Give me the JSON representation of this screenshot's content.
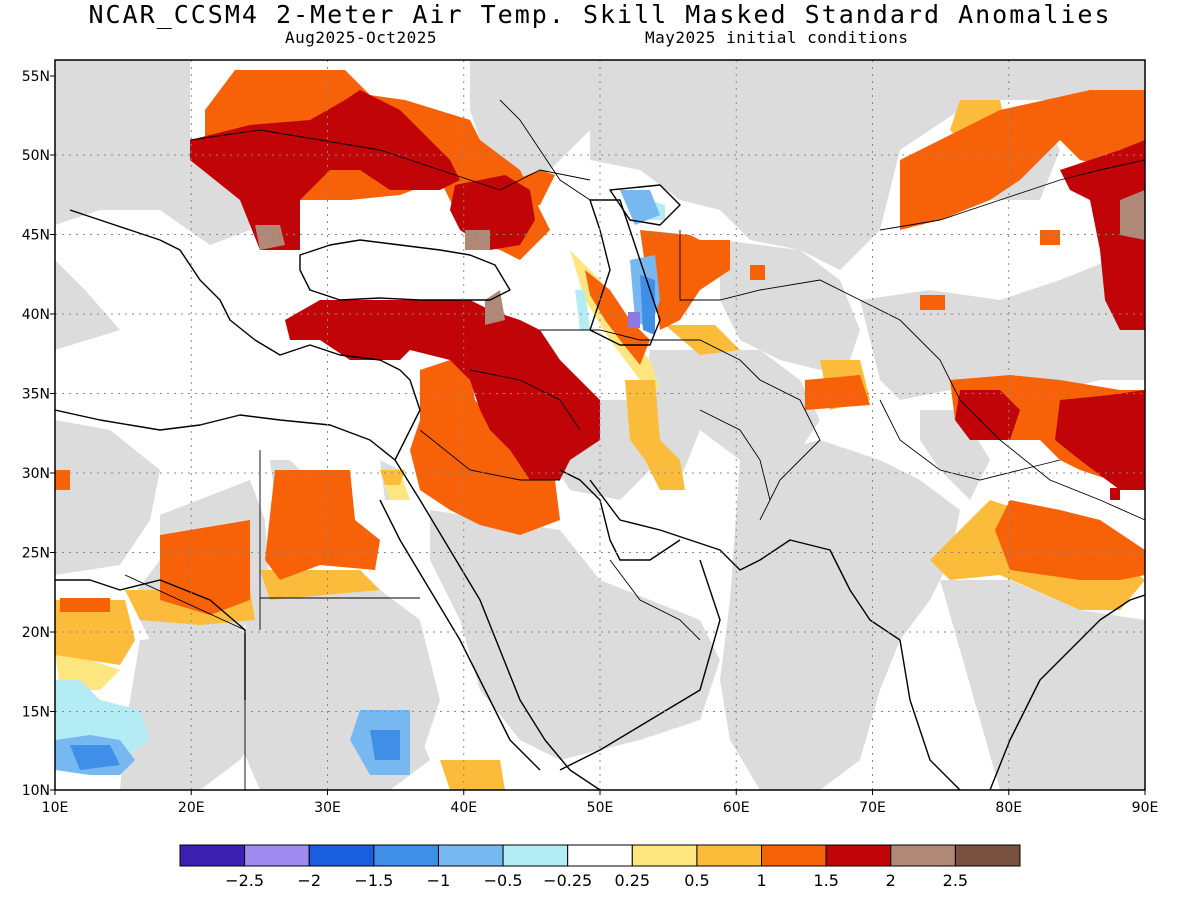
{
  "title": "NCAR_CCSM4 2-Meter Air Temp. Skill Masked Standard Anomalies",
  "period": "Aug2025-Oct2025",
  "init": "May2025 initial conditions",
  "lat_labels": [
    "55N",
    "50N",
    "45N",
    "40N",
    "35N",
    "30N",
    "25N",
    "20N",
    "15N",
    "10N"
  ],
  "lon_labels": [
    "10E",
    "20E",
    "30E",
    "40E",
    "50E",
    "60E",
    "70E",
    "80E",
    "90E"
  ],
  "colorbar": {
    "colors": [
      "#3a1fb0",
      "#a08cf0",
      "#1a5ee0",
      "#3f8fe8",
      "#78b8f0",
      "#b4ecf4",
      "#ffffff",
      "#fde680",
      "#fbbc3c",
      "#f76208",
      "#c00408",
      "#b08878",
      "#7a5040"
    ],
    "labels": [
      "-2.5",
      "-2",
      "-1.5",
      "-1",
      "-0.5",
      "-0.25",
      "0.25",
      "0.5",
      "1",
      "1.5",
      "2",
      "2.5"
    ]
  },
  "colors": {
    "masked": "#dcdcdc",
    "land_outline": "#000000",
    "grid": "#888888"
  }
}
